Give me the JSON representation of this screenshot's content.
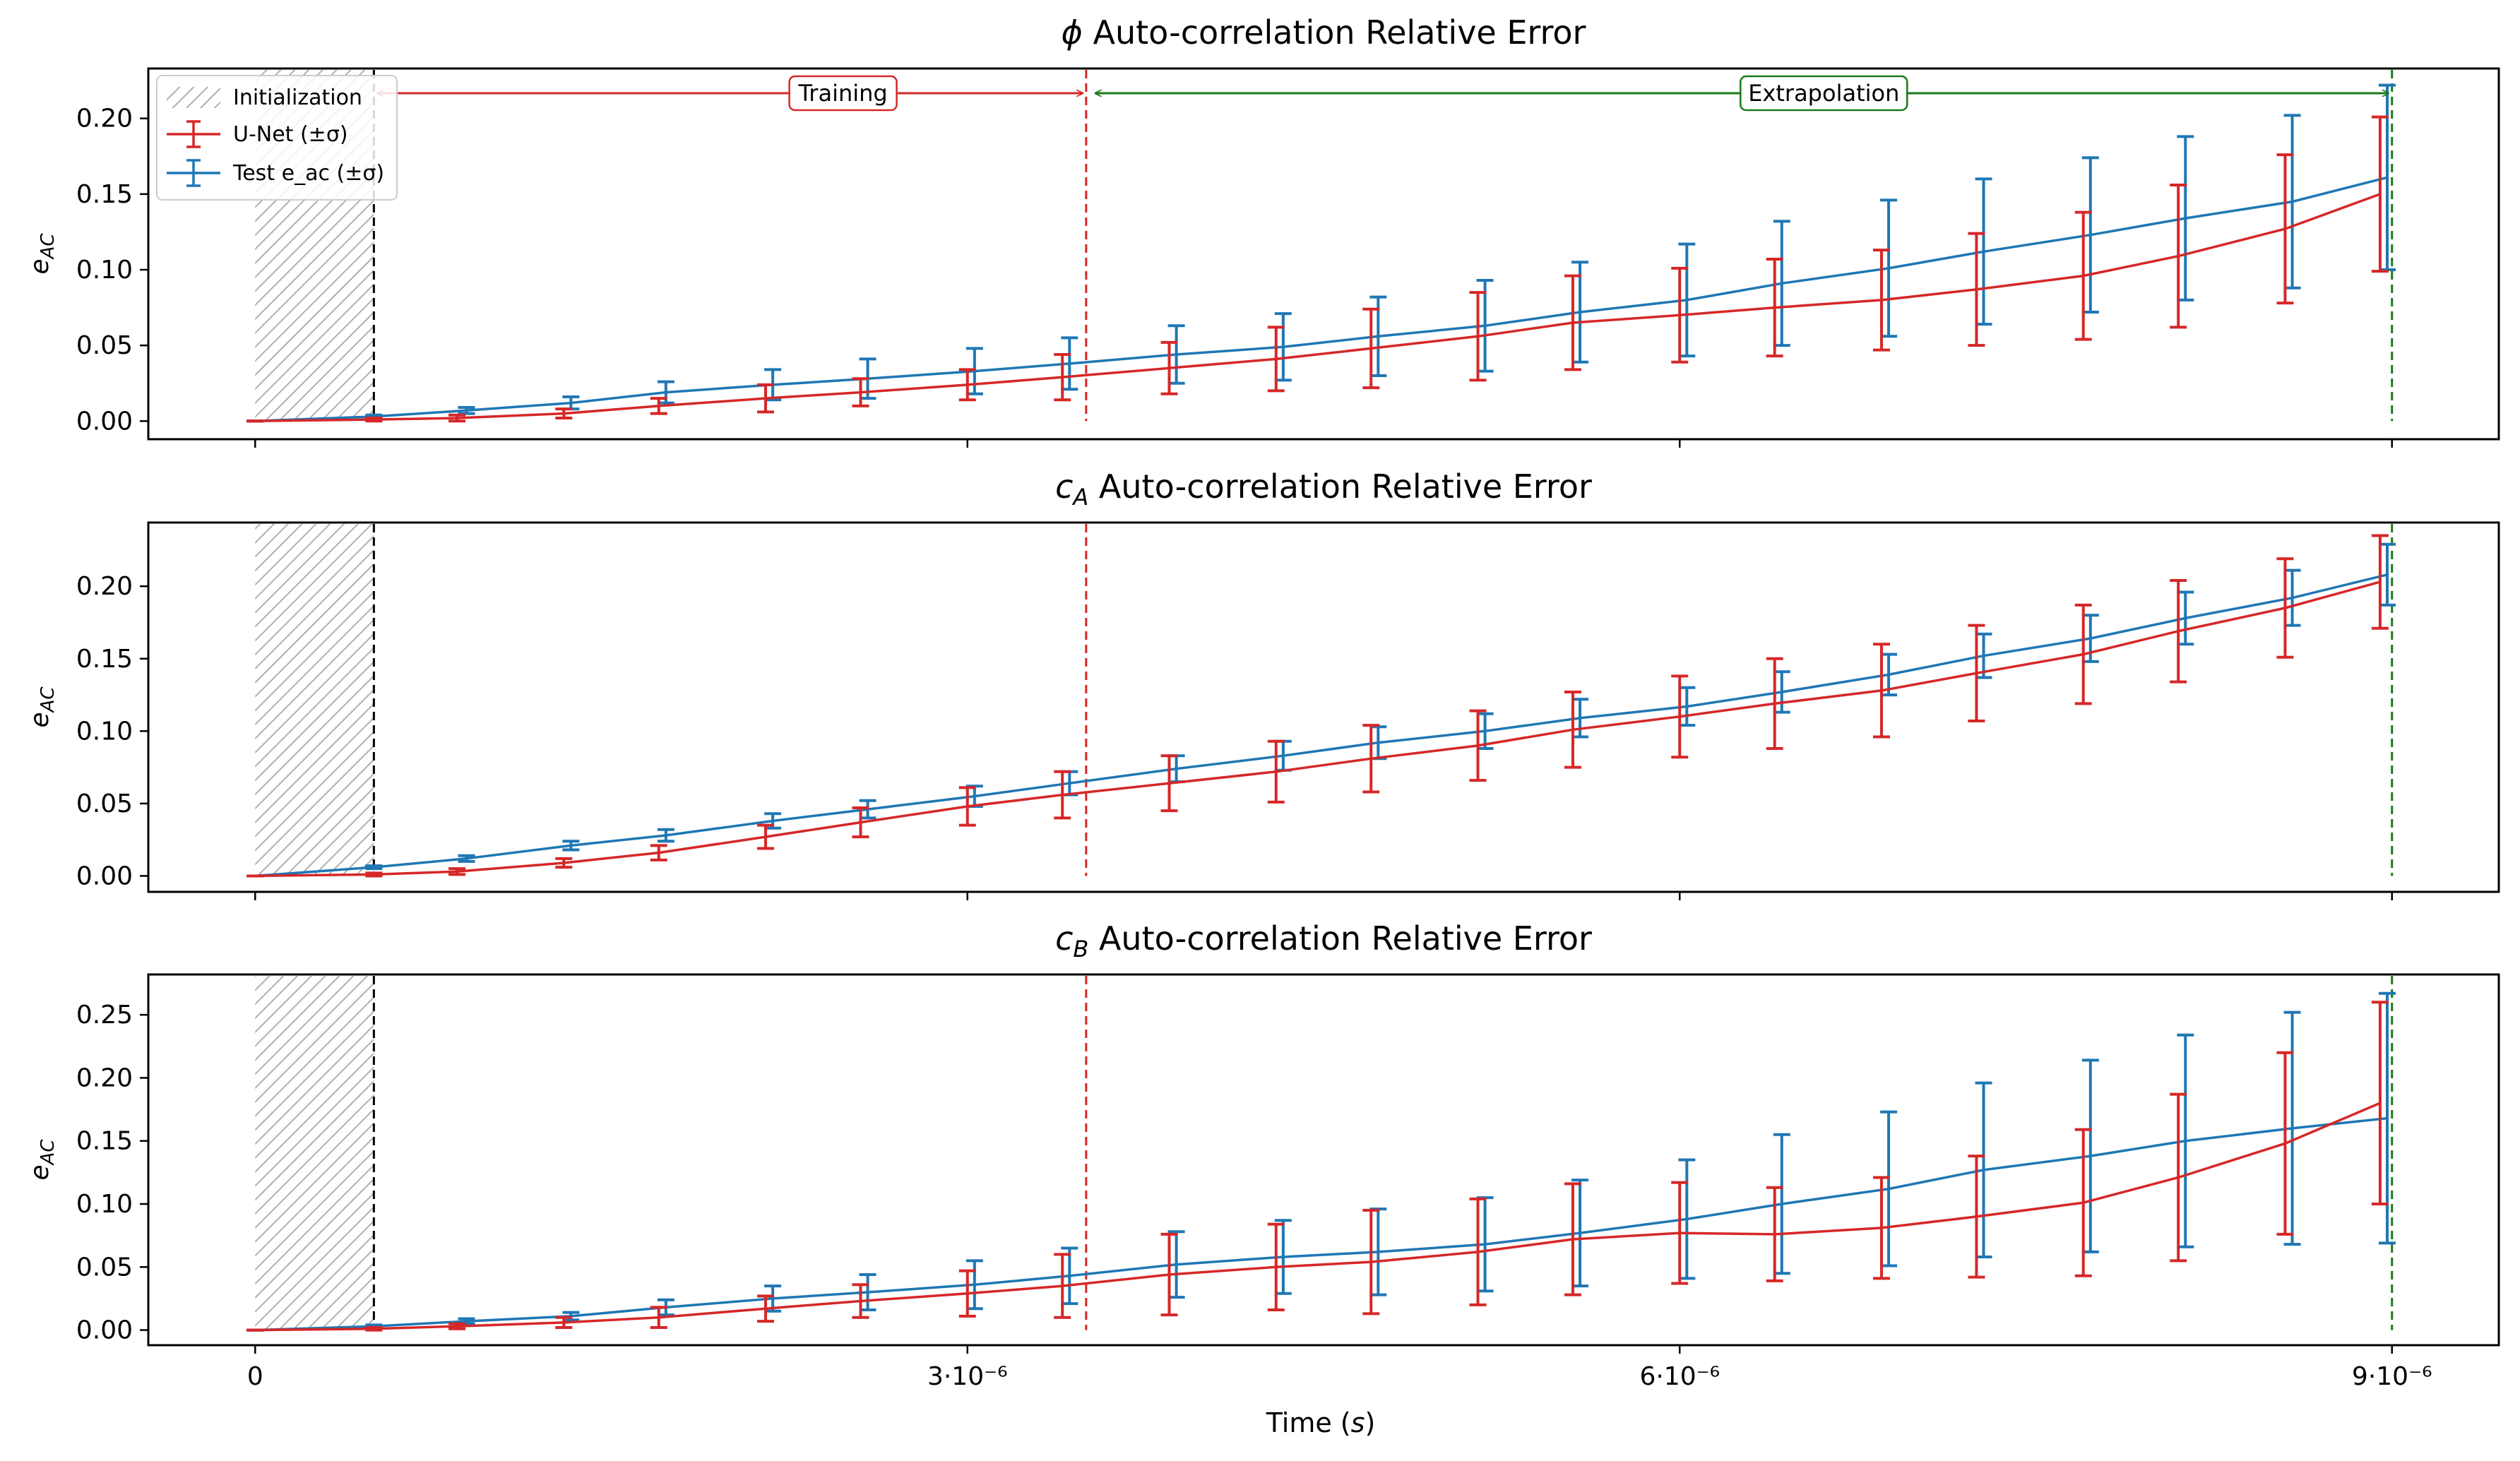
{
  "chart_data": {
    "type": "line",
    "x_label": "Time (s)",
    "x_label_plain": "Time",
    "x_label_italic": "s",
    "x_ticks": [
      {
        "value": 0,
        "label": "0"
      },
      {
        "value": 3e-06,
        "label": "3·10⁻⁶"
      },
      {
        "value": 6e-06,
        "label": "6·10⁻⁶"
      },
      {
        "value": 9e-06,
        "label": "9·10⁻⁶"
      }
    ],
    "x_range": [
      -4.5e-07,
      9.45e-06
    ],
    "init_end": 5e-07,
    "train_end": 3.5e-06,
    "extrap_end": 9e-06,
    "legend": {
      "initialization": "Initialization",
      "unet": "U-Net (±σ)",
      "test": "Test e_ac (±σ)"
    },
    "span_labels": {
      "training": "Training",
      "extrapolation": "Extrapolation"
    },
    "colors": {
      "unet": "#d62728",
      "test": "#1f77b4",
      "init": "#9a9a9a",
      "train_line": "#d62728",
      "extrap_line": "#1a7a1a"
    },
    "ylabel": "e_AC",
    "panels": [
      {
        "title": "ϕ Auto-correlation Relative Error",
        "title_symbol": "ϕ",
        "title_text": " Auto-correlation Relative Error",
        "ylim": [
          -0.012,
          0.233
        ],
        "yticks": [
          "0.00",
          "0.05",
          "0.10",
          "0.15",
          "0.20"
        ],
        "show_span_labels": true,
        "series": [
          {
            "name": "U-Net (±σ)",
            "x": [
              0,
              5e-07,
              8.5e-07,
              1.3e-06,
              1.7e-06,
              2.15e-06,
              2.55e-06,
              3e-06,
              3.4e-06,
              3.85e-06,
              4.3e-06,
              4.7e-06,
              5.15e-06,
              5.55e-06,
              6e-06,
              6.4e-06,
              6.85e-06,
              7.25e-06,
              7.7e-06,
              8.1e-06,
              8.55e-06,
              8.95e-06
            ],
            "y": [
              0,
              0.001,
              0.002,
              0.005,
              0.01,
              0.015,
              0.019,
              0.024,
              0.029,
              0.035,
              0.041,
              0.048,
              0.056,
              0.065,
              0.07,
              0.075,
              0.08,
              0.087,
              0.096,
              0.109,
              0.127,
              0.15
            ],
            "err": [
              0,
              0.001,
              0.002,
              0.003,
              0.005,
              0.009,
              0.009,
              0.01,
              0.015,
              0.017,
              0.021,
              0.026,
              0.029,
              0.031,
              0.031,
              0.032,
              0.033,
              0.037,
              0.042,
              0.047,
              0.049,
              0.051
            ]
          },
          {
            "name": "Test e_ac (±σ)",
            "x": [
              0,
              5e-07,
              8.9e-07,
              1.33e-06,
              1.73e-06,
              2.18e-06,
              2.58e-06,
              3.03e-06,
              3.43e-06,
              3.88e-06,
              4.33e-06,
              4.73e-06,
              5.18e-06,
              5.58e-06,
              6.03e-06,
              6.43e-06,
              6.88e-06,
              7.28e-06,
              7.73e-06,
              8.13e-06,
              8.58e-06,
              8.98e-06
            ],
            "y": [
              0,
              0.003,
              0.007,
              0.012,
              0.019,
              0.024,
              0.028,
              0.033,
              0.038,
              0.044,
              0.049,
              0.056,
              0.063,
              0.072,
              0.08,
              0.091,
              0.101,
              0.112,
              0.123,
              0.134,
              0.145,
              0.161
            ],
            "err": [
              0,
              0.001,
              0.002,
              0.004,
              0.007,
              0.01,
              0.013,
              0.015,
              0.017,
              0.019,
              0.022,
              0.026,
              0.03,
              0.033,
              0.037,
              0.041,
              0.045,
              0.048,
              0.051,
              0.054,
              0.057,
              0.061
            ]
          }
        ]
      },
      {
        "title": "c_A Auto-correlation Relative Error",
        "title_symbol": "c",
        "title_sub": "A",
        "title_text": " Auto-correlation Relative Error",
        "ylim": [
          -0.011,
          0.244
        ],
        "yticks": [
          "0.00",
          "0.05",
          "0.10",
          "0.15",
          "0.20"
        ],
        "show_span_labels": false,
        "series": [
          {
            "name": "U-Net (±σ)",
            "x": [
              0,
              5e-07,
              8.5e-07,
              1.3e-06,
              1.7e-06,
              2.15e-06,
              2.55e-06,
              3e-06,
              3.4e-06,
              3.85e-06,
              4.3e-06,
              4.7e-06,
              5.15e-06,
              5.55e-06,
              6e-06,
              6.4e-06,
              6.85e-06,
              7.25e-06,
              7.7e-06,
              8.1e-06,
              8.55e-06,
              8.95e-06
            ],
            "y": [
              0,
              0.001,
              0.003,
              0.009,
              0.016,
              0.027,
              0.037,
              0.048,
              0.056,
              0.064,
              0.072,
              0.081,
              0.09,
              0.101,
              0.11,
              0.119,
              0.128,
              0.14,
              0.153,
              0.169,
              0.185,
              0.203
            ],
            "err": [
              0,
              0.001,
              0.002,
              0.003,
              0.005,
              0.008,
              0.01,
              0.013,
              0.016,
              0.019,
              0.021,
              0.023,
              0.024,
              0.026,
              0.028,
              0.031,
              0.032,
              0.033,
              0.034,
              0.035,
              0.034,
              0.032
            ]
          },
          {
            "name": "Test e_ac (±σ)",
            "x": [
              0,
              5e-07,
              8.9e-07,
              1.33e-06,
              1.73e-06,
              2.18e-06,
              2.58e-06,
              3.03e-06,
              3.43e-06,
              3.88e-06,
              4.33e-06,
              4.73e-06,
              5.18e-06,
              5.58e-06,
              6.03e-06,
              6.43e-06,
              6.88e-06,
              7.28e-06,
              7.73e-06,
              8.13e-06,
              8.58e-06,
              8.98e-06
            ],
            "y": [
              0,
              0.006,
              0.012,
              0.021,
              0.028,
              0.038,
              0.046,
              0.055,
              0.064,
              0.074,
              0.083,
              0.092,
              0.1,
              0.109,
              0.117,
              0.127,
              0.139,
              0.152,
              0.164,
              0.178,
              0.192,
              0.208
            ],
            "err": [
              0,
              0.001,
              0.002,
              0.003,
              0.004,
              0.005,
              0.006,
              0.007,
              0.008,
              0.009,
              0.01,
              0.011,
              0.012,
              0.013,
              0.013,
              0.014,
              0.014,
              0.015,
              0.016,
              0.018,
              0.019,
              0.021
            ]
          }
        ]
      },
      {
        "title": "c_B Auto-correlation Relative Error",
        "title_symbol": "c",
        "title_sub": "B",
        "title_text": " Auto-correlation Relative Error",
        "ylim": [
          -0.012,
          0.282
        ],
        "yticks": [
          "0.00",
          "0.05",
          "0.10",
          "0.15",
          "0.20",
          "0.25"
        ],
        "show_span_labels": false,
        "series": [
          {
            "name": "U-Net (±σ)",
            "x": [
              0,
              5e-07,
              8.5e-07,
              1.3e-06,
              1.7e-06,
              2.15e-06,
              2.55e-06,
              3e-06,
              3.4e-06,
              3.85e-06,
              4.3e-06,
              4.7e-06,
              5.15e-06,
              5.55e-06,
              6e-06,
              6.4e-06,
              6.85e-06,
              7.25e-06,
              7.7e-06,
              8.1e-06,
              8.55e-06,
              8.95e-06
            ],
            "y": [
              0,
              0.001,
              0.003,
              0.006,
              0.01,
              0.017,
              0.023,
              0.029,
              0.035,
              0.044,
              0.05,
              0.054,
              0.062,
              0.072,
              0.077,
              0.076,
              0.081,
              0.09,
              0.101,
              0.121,
              0.148,
              0.18
            ],
            "err": [
              0,
              0.001,
              0.002,
              0.004,
              0.008,
              0.01,
              0.013,
              0.018,
              0.025,
              0.032,
              0.034,
              0.041,
              0.042,
              0.044,
              0.04,
              0.037,
              0.04,
              0.048,
              0.058,
              0.066,
              0.072,
              0.08
            ]
          },
          {
            "name": "Test e_ac (±σ)",
            "x": [
              0,
              5e-07,
              8.9e-07,
              1.33e-06,
              1.73e-06,
              2.18e-06,
              2.58e-06,
              3.03e-06,
              3.43e-06,
              3.88e-06,
              4.33e-06,
              4.73e-06,
              5.18e-06,
              5.58e-06,
              6.03e-06,
              6.43e-06,
              6.88e-06,
              7.28e-06,
              7.73e-06,
              8.13e-06,
              8.58e-06,
              8.98e-06
            ],
            "y": [
              0,
              0.003,
              0.007,
              0.011,
              0.018,
              0.025,
              0.03,
              0.036,
              0.043,
              0.052,
              0.058,
              0.062,
              0.068,
              0.077,
              0.088,
              0.1,
              0.112,
              0.127,
              0.138,
              0.15,
              0.16,
              0.168
            ],
            "err": [
              0,
              0.001,
              0.002,
              0.003,
              0.006,
              0.01,
              0.014,
              0.019,
              0.022,
              0.026,
              0.029,
              0.034,
              0.037,
              0.042,
              0.047,
              0.055,
              0.061,
              0.069,
              0.076,
              0.084,
              0.092,
              0.099
            ]
          }
        ]
      }
    ]
  }
}
